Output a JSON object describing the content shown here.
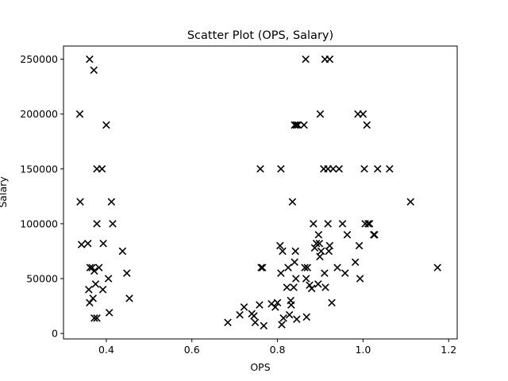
{
  "chart_data": {
    "type": "scatter",
    "title": "Scatter Plot (OPS, Salary)",
    "xlabel": "OPS",
    "ylabel": "Salary",
    "xlim": [
      0.3,
      1.22
    ],
    "ylim": [
      -5000,
      262000
    ],
    "xticks": [
      0.4,
      0.6,
      0.8,
      1.0,
      1.2
    ],
    "xtick_labels": [
      "0.4",
      "0.6",
      "0.8",
      "1.0",
      "1.2"
    ],
    "yticks": [
      0,
      50000,
      100000,
      150000,
      200000,
      250000
    ],
    "ytick_labels": [
      "0",
      "50000",
      "100000",
      "150000",
      "200000",
      "250000"
    ],
    "grid": false,
    "marker": "x",
    "marker_color": "#000000",
    "series": [
      {
        "points": [
          [
            0.338,
            200000
          ],
          [
            0.361,
            250000
          ],
          [
            0.371,
            240000
          ],
          [
            0.4,
            190000
          ],
          [
            0.378,
            150000
          ],
          [
            0.39,
            150000
          ],
          [
            0.339,
            120000
          ],
          [
            0.412,
            120000
          ],
          [
            0.378,
            100000
          ],
          [
            0.415,
            100000
          ],
          [
            0.342,
            81000
          ],
          [
            0.357,
            82000
          ],
          [
            0.393,
            82000
          ],
          [
            0.438,
            75000
          ],
          [
            0.362,
            60000
          ],
          [
            0.367,
            60000
          ],
          [
            0.372,
            57000
          ],
          [
            0.383,
            60000
          ],
          [
            0.448,
            55000
          ],
          [
            0.405,
            50000
          ],
          [
            0.375,
            45000
          ],
          [
            0.359,
            40000
          ],
          [
            0.392,
            40000
          ],
          [
            0.369,
            32000
          ],
          [
            0.361,
            28000
          ],
          [
            0.454,
            32000
          ],
          [
            0.407,
            19000
          ],
          [
            0.372,
            14000
          ],
          [
            0.378,
            14000
          ],
          [
            0.684,
            10000
          ],
          [
            0.712,
            17000
          ],
          [
            0.722,
            24000
          ],
          [
            0.74,
            18000
          ],
          [
            0.745,
            16000
          ],
          [
            0.748,
            10000
          ],
          [
            0.758,
            26000
          ],
          [
            0.768,
            7000
          ],
          [
            0.76,
            150000
          ],
          [
            0.762,
            60000
          ],
          [
            0.765,
            60000
          ],
          [
            0.786,
            27000
          ],
          [
            0.795,
            24000
          ],
          [
            0.8,
            28000
          ],
          [
            0.808,
            150000
          ],
          [
            0.806,
            80000
          ],
          [
            0.812,
            75000
          ],
          [
            0.808,
            55000
          ],
          [
            0.81,
            8000
          ],
          [
            0.814,
            14000
          ],
          [
            0.822,
            42000
          ],
          [
            0.825,
            60000
          ],
          [
            0.832,
            26000
          ],
          [
            0.831,
            30000
          ],
          [
            0.828,
            17000
          ],
          [
            0.835,
            120000
          ],
          [
            0.84,
            190000
          ],
          [
            0.844,
            190000
          ],
          [
            0.848,
            190000
          ],
          [
            0.84,
            65000
          ],
          [
            0.842,
            75000
          ],
          [
            0.843,
            50000
          ],
          [
            0.838,
            42000
          ],
          [
            0.845,
            13000
          ],
          [
            0.862,
            190000
          ],
          [
            0.866,
            250000
          ],
          [
            0.864,
            60000
          ],
          [
            0.87,
            60000
          ],
          [
            0.867,
            50000
          ],
          [
            0.868,
            15000
          ],
          [
            0.875,
            44000
          ],
          [
            0.88,
            41000
          ],
          [
            0.884,
            100000
          ],
          [
            0.887,
            78000
          ],
          [
            0.891,
            82000
          ],
          [
            0.896,
            90000
          ],
          [
            0.898,
            82000
          ],
          [
            0.9,
            200000
          ],
          [
            0.902,
            75000
          ],
          [
            0.899,
            70000
          ],
          [
            0.895,
            45000
          ],
          [
            0.911,
            250000
          ],
          [
            0.922,
            250000
          ],
          [
            0.908,
            150000
          ],
          [
            0.918,
            150000
          ],
          [
            0.93,
            150000
          ],
          [
            0.944,
            150000
          ],
          [
            0.918,
            100000
          ],
          [
            0.922,
            80000
          ],
          [
            0.92,
            75000
          ],
          [
            0.91,
            55000
          ],
          [
            0.912,
            42000
          ],
          [
            0.927,
            28000
          ],
          [
            0.94,
            60000
          ],
          [
            0.952,
            100000
          ],
          [
            0.958,
            55000
          ],
          [
            0.963,
            90000
          ],
          [
            0.982,
            65000
          ],
          [
            0.988,
            200000
          ],
          [
            0.991,
            80000
          ],
          [
            0.993,
            50000
          ],
          [
            1.0,
            200000
          ],
          [
            1.003,
            150000
          ],
          [
            1.005,
            100000
          ],
          [
            1.009,
            190000
          ],
          [
            1.012,
            100000
          ],
          [
            1.015,
            100000
          ],
          [
            1.025,
            90000
          ],
          [
            1.027,
            90000
          ],
          [
            1.034,
            150000
          ],
          [
            1.062,
            150000
          ],
          [
            1.111,
            120000
          ],
          [
            1.174,
            60000
          ]
        ]
      }
    ]
  }
}
